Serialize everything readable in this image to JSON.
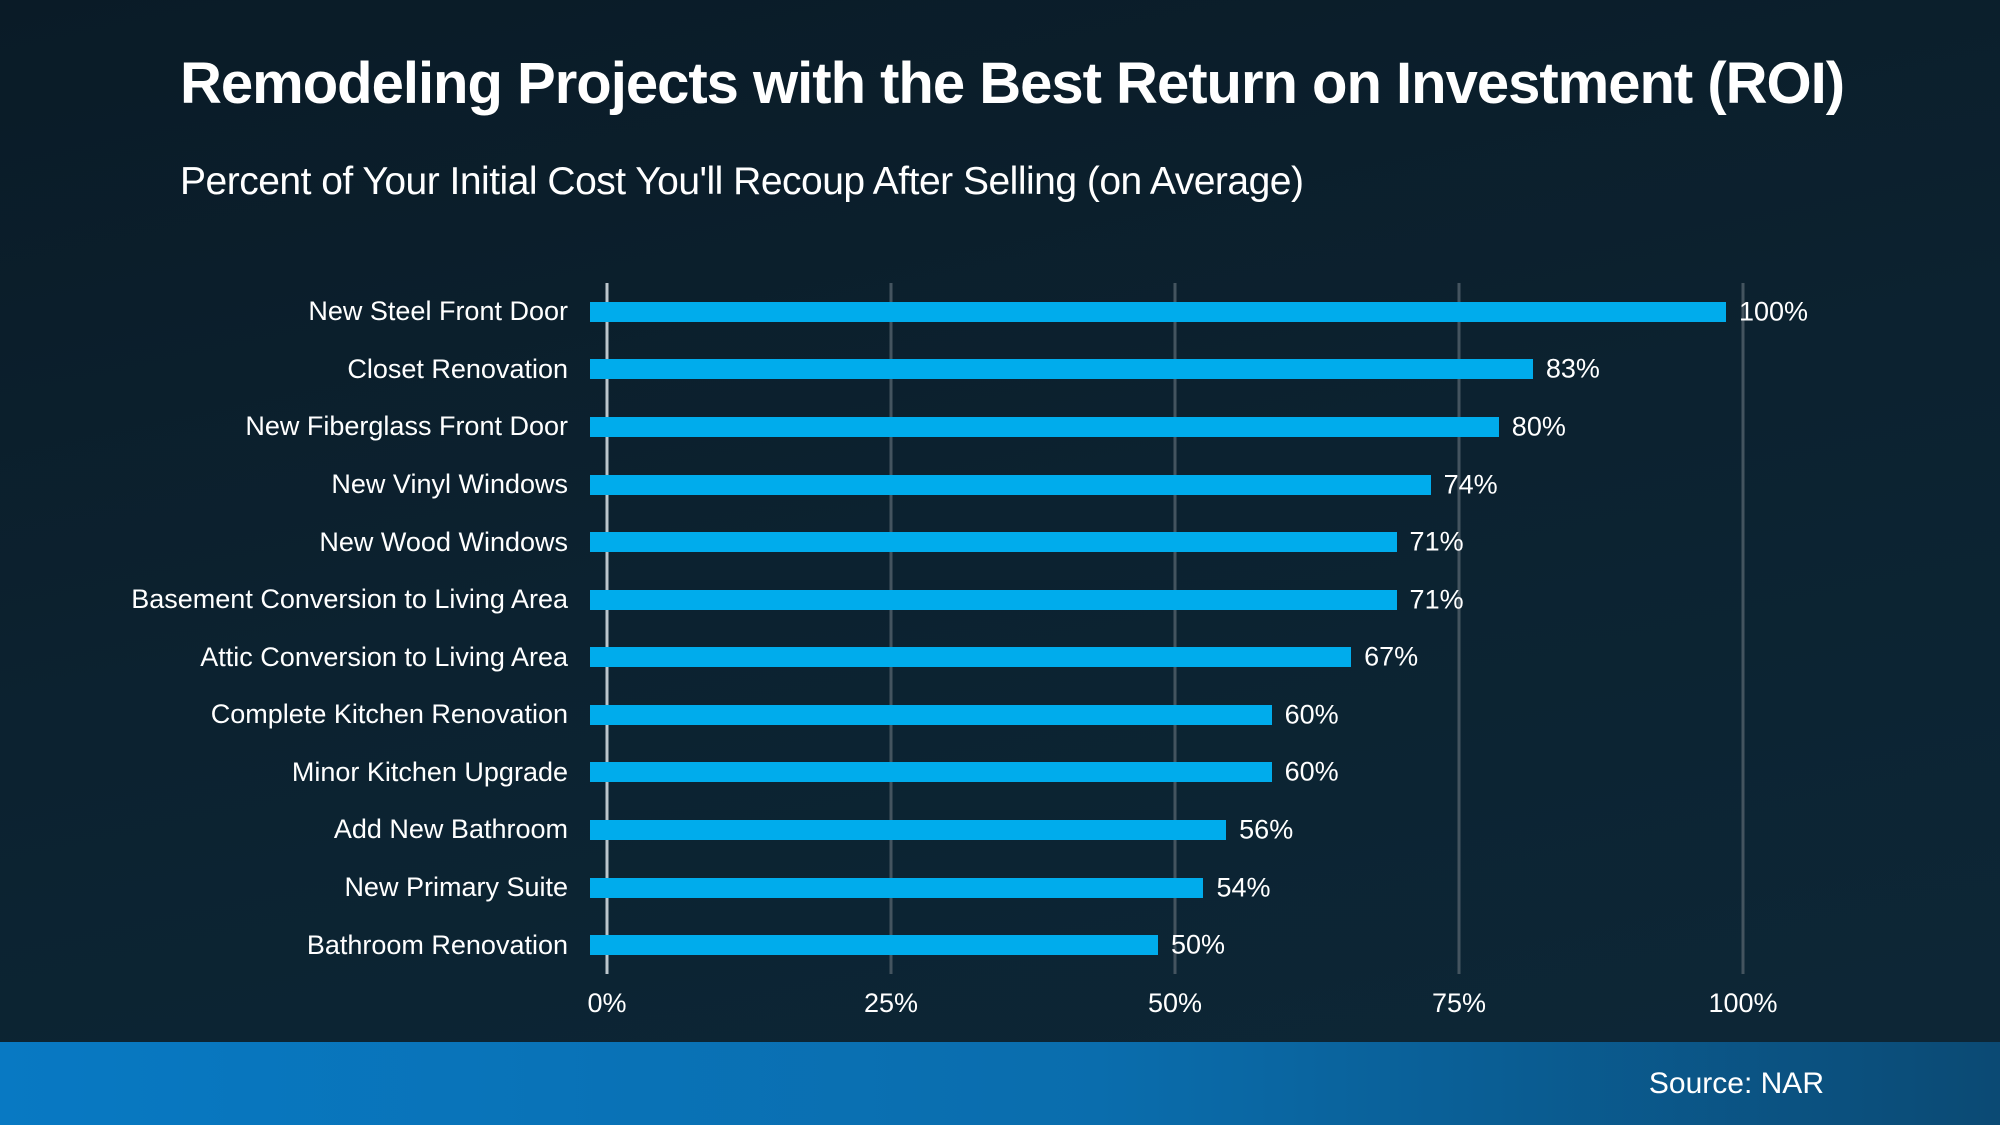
{
  "header": {
    "title": "Remodeling Projects with the Best Return on Investment (ROI)",
    "subtitle": "Percent of Your Initial Cost You'll Recoup After Selling (on Average)"
  },
  "chart_data": {
    "type": "bar",
    "orientation": "horizontal",
    "title": "Remodeling Projects with the Best Return on Investment (ROI)",
    "subtitle": "Percent of Your Initial Cost You'll Recoup After Selling (on Average)",
    "categories": [
      "New Steel Front Door",
      "Closet Renovation",
      "New Fiberglass Front Door",
      "New Vinyl Windows",
      "New Wood Windows",
      "Basement Conversion to Living Area",
      "Attic Conversion to Living Area",
      "Complete Kitchen Renovation",
      "Minor Kitchen Upgrade",
      "Add New Bathroom",
      "New Primary Suite",
      "Bathroom Renovation"
    ],
    "values": [
      100,
      83,
      80,
      74,
      71,
      71,
      67,
      60,
      60,
      56,
      54,
      50
    ],
    "data_labels": [
      "100%",
      "83%",
      "80%",
      "74%",
      "71%",
      "71%",
      "67%",
      "60%",
      "60%",
      "56%",
      "54%",
      "50%"
    ],
    "xlabel": "",
    "ylabel": "",
    "xlim": [
      0,
      100
    ],
    "x_ticks": [
      {
        "value": 0,
        "label": "0%"
      },
      {
        "value": 25,
        "label": "25%"
      },
      {
        "value": 50,
        "label": "50%"
      },
      {
        "value": 75,
        "label": "75%"
      },
      {
        "value": 100,
        "label": "100%"
      }
    ],
    "grid": "vertical-only",
    "legend": "none",
    "colors": {
      "bar": "#00ACEC",
      "background_top": "#0a1b27",
      "background_bottom": "#0d2737",
      "gridline": "#44545f",
      "zero_axis_line": "#bcc6cc",
      "text": "#ffffff",
      "footer_gradient_left": "#0879c3",
      "footer_gradient_right": "#0b4a74"
    }
  },
  "footer": {
    "source_label": "Source: NAR"
  }
}
